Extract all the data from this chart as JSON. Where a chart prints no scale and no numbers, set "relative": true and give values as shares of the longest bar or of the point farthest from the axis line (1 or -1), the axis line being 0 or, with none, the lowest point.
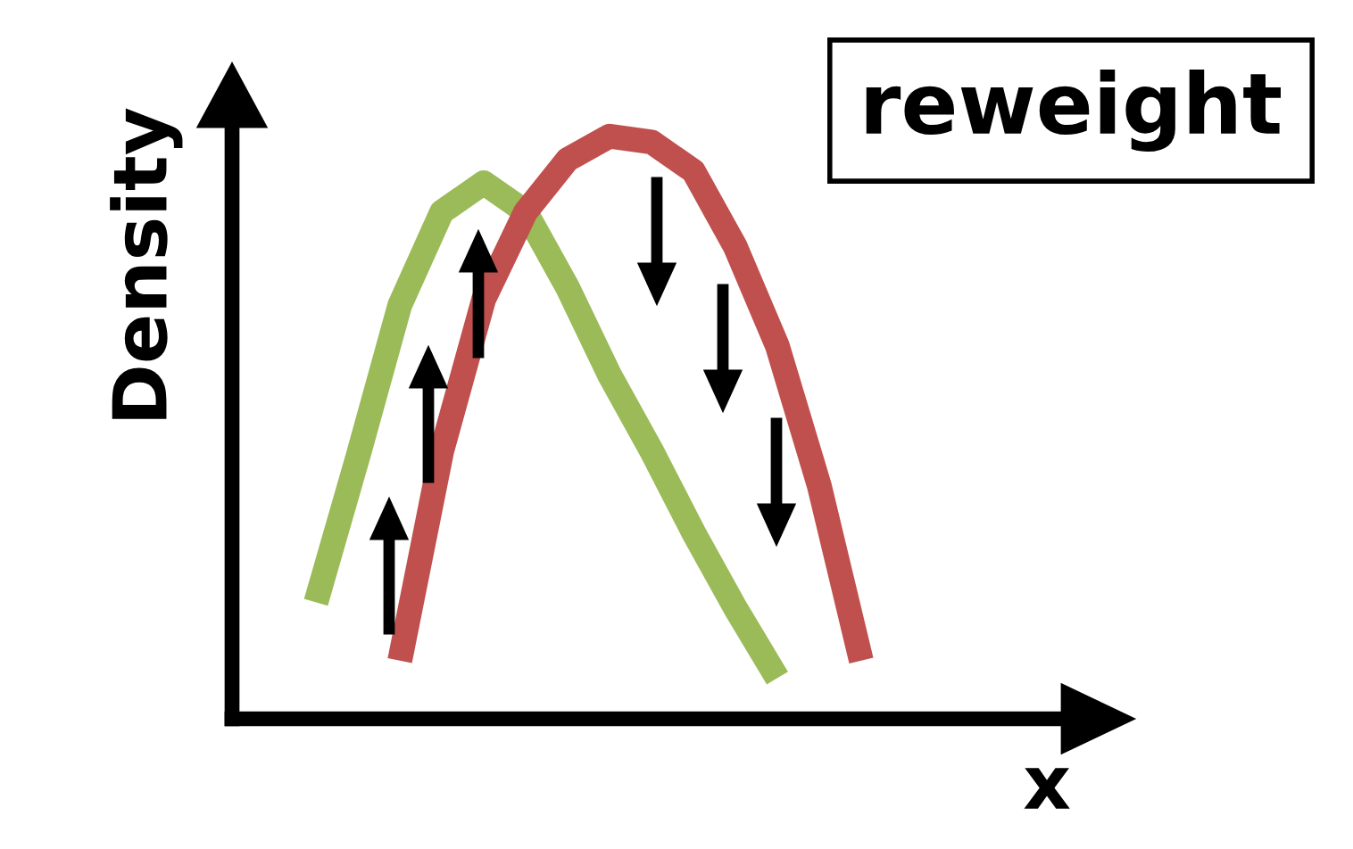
{
  "chart_data": {
    "type": "line",
    "title": "reweight",
    "xlabel": "x",
    "ylabel": "Density",
    "relative": true,
    "categories": [
      null,
      null,
      null,
      null,
      null,
      null,
      null,
      null,
      null,
      null,
      null,
      null,
      null,
      null,
      null,
      null,
      null,
      null,
      null,
      null,
      null
    ],
    "series": [
      {
        "color": "#9bbb59",
        "values": [
          null,
          null,
          0.2,
          0.45,
          0.71,
          0.87,
          0.92,
          0.87,
          0.74,
          0.59,
          0.46,
          0.32,
          0.19,
          0.07,
          null,
          null,
          null,
          null,
          null,
          null,
          null
        ]
      },
      {
        "color": "#c0504d",
        "values": [
          null,
          null,
          null,
          null,
          0.1,
          0.46,
          0.72,
          0.87,
          0.96,
          1,
          0.99,
          0.94,
          0.81,
          0.64,
          0.4,
          0.1,
          null,
          null,
          null,
          null,
          null
        ]
      }
    ],
    "grid": false,
    "legend": false
  }
}
